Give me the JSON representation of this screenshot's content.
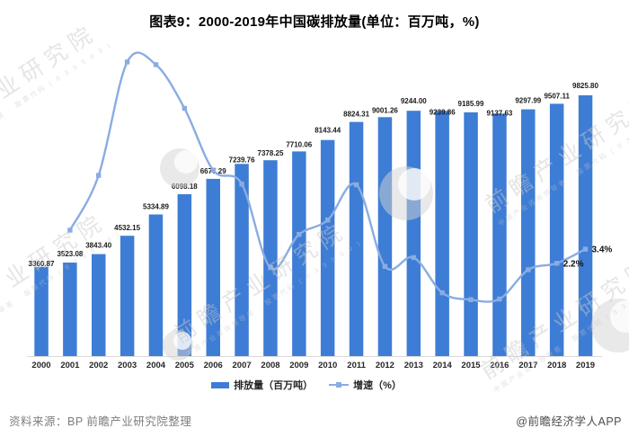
{
  "title": "图表9：2000-2019年中国碳排放量(单位：百万吨，%)",
  "chart_data": {
    "type": "bar+line",
    "categories": [
      "2000",
      "2001",
      "2002",
      "2003",
      "2004",
      "2005",
      "2006",
      "2007",
      "2008",
      "2009",
      "2010",
      "2011",
      "2012",
      "2013",
      "2014",
      "2015",
      "2016",
      "2017",
      "2018",
      "2019"
    ],
    "series": [
      {
        "name": "排放量（百万吨）",
        "type": "bar",
        "values": [
          3360.87,
          3523.08,
          3843.4,
          4532.15,
          5334.89,
          6098.18,
          6677.29,
          7239.76,
          7378.25,
          7710.06,
          8143.44,
          8824.31,
          9001.26,
          9244.0,
          9239.86,
          9185.99,
          9137.63,
          9297.99,
          9507.11,
          9825.8
        ]
      },
      {
        "name": "增速（%）",
        "type": "line",
        "values": [
          null,
          4.83,
          9.09,
          17.92,
          17.71,
          14.31,
          9.5,
          8.42,
          1.91,
          4.5,
          5.62,
          8.36,
          2.01,
          2.7,
          -0.04,
          -0.58,
          -0.53,
          1.75,
          2.25,
          3.35
        ],
        "point_labels": {
          "2018": "2.2%",
          "2019": "3.4%"
        }
      }
    ],
    "value_axis_visible": false,
    "grid": false,
    "legend_position": "bottom",
    "data_labels": "above bars, two decimals"
  },
  "legend": {
    "items": [
      {
        "label": "排放量（百万吨）",
        "swatch": "bar"
      },
      {
        "label": "增速（%）",
        "swatch": "line-marker"
      }
    ]
  },
  "footer": {
    "source": "资料来源：BP 前瞻产业研究院整理",
    "credit": "@前瞻经济学人APP"
  },
  "watermark": {
    "text": "前瞻产业研究院",
    "subtext": "中国产业咨询领导者 · 股票代码 ( 8 3 9 5 9 9 )"
  },
  "colors": {
    "bar": "#3E7DD5",
    "line": "#8AACE2",
    "axis": "#d9d9d9",
    "title_text": "#000000",
    "value_label_text": "#1a1a1a",
    "tick_text": "#262626",
    "source_text": "#7d7d7d",
    "credit_text": "#4d4d4d",
    "watermark": "#c9c9c9"
  }
}
